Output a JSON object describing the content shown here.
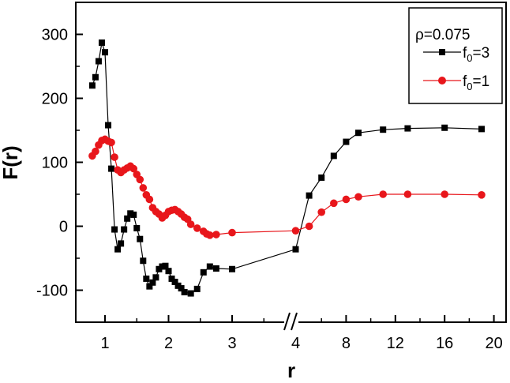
{
  "chart_data": {
    "type": "line",
    "xlabel": "r",
    "ylabel": "F(r)",
    "ylim": [
      -150,
      350
    ],
    "x_axis": "broken",
    "x_ticks_left": [
      "1",
      "2",
      "3",
      "4"
    ],
    "x_ticks_right": [
      "8",
      "12",
      "16",
      "20"
    ],
    "y_ticks": [
      "-100",
      "0",
      "100",
      "200",
      "300"
    ],
    "legend_title": "ρ=0.075",
    "legend_position": "top-right",
    "grid": false,
    "series": [
      {
        "name": "f0=3",
        "label_base": "f",
        "label_sub": "0",
        "label_tail": "=3",
        "color": "#000000",
        "marker": "square",
        "left": [
          [
            0.8,
            220
          ],
          [
            0.85,
            233
          ],
          [
            0.9,
            258
          ],
          [
            0.95,
            287
          ],
          [
            1.0,
            272
          ],
          [
            1.05,
            158
          ],
          [
            1.1,
            90
          ],
          [
            1.15,
            -5
          ],
          [
            1.2,
            -36
          ],
          [
            1.25,
            -27
          ],
          [
            1.3,
            -5
          ],
          [
            1.35,
            12
          ],
          [
            1.4,
            20
          ],
          [
            1.45,
            18
          ],
          [
            1.5,
            -3
          ],
          [
            1.55,
            -20
          ],
          [
            1.6,
            -54
          ],
          [
            1.65,
            -82
          ],
          [
            1.7,
            -94
          ],
          [
            1.75,
            -88
          ],
          [
            1.8,
            -80
          ],
          [
            1.85,
            -67
          ],
          [
            1.9,
            -63
          ],
          [
            1.95,
            -62
          ],
          [
            2.0,
            -70
          ],
          [
            2.05,
            -82
          ],
          [
            2.1,
            -87
          ],
          [
            2.15,
            -93
          ],
          [
            2.2,
            -97
          ],
          [
            2.25,
            -103
          ],
          [
            2.35,
            -105
          ],
          [
            2.45,
            -98
          ],
          [
            2.55,
            -72
          ],
          [
            2.65,
            -63
          ],
          [
            2.75,
            -66
          ],
          [
            3.0,
            -67
          ],
          [
            4.0,
            -36
          ]
        ],
        "right": [
          [
            5,
            48
          ],
          [
            6,
            76
          ],
          [
            7,
            110
          ],
          [
            8,
            132
          ],
          [
            9,
            146
          ],
          [
            11,
            151
          ],
          [
            13,
            153
          ],
          [
            16,
            154
          ],
          [
            19,
            152
          ]
        ]
      },
      {
        "name": "f0=1",
        "label_base": "f",
        "label_sub": "0",
        "label_tail": "=1",
        "color": "#e8161b",
        "marker": "circle",
        "left": [
          [
            0.8,
            110
          ],
          [
            0.85,
            117
          ],
          [
            0.9,
            127
          ],
          [
            0.95,
            134
          ],
          [
            1.0,
            136
          ],
          [
            1.05,
            133
          ],
          [
            1.1,
            131
          ],
          [
            1.15,
            108
          ],
          [
            1.2,
            88
          ],
          [
            1.25,
            84
          ],
          [
            1.3,
            88
          ],
          [
            1.35,
            91
          ],
          [
            1.4,
            94
          ],
          [
            1.45,
            90
          ],
          [
            1.5,
            81
          ],
          [
            1.55,
            73
          ],
          [
            1.6,
            60
          ],
          [
            1.65,
            49
          ],
          [
            1.7,
            42
          ],
          [
            1.75,
            29
          ],
          [
            1.8,
            23
          ],
          [
            1.85,
            19
          ],
          [
            1.9,
            13
          ],
          [
            1.95,
            17
          ],
          [
            2.0,
            23
          ],
          [
            2.05,
            25
          ],
          [
            2.1,
            26
          ],
          [
            2.15,
            23
          ],
          [
            2.2,
            19
          ],
          [
            2.25,
            14
          ],
          [
            2.3,
            11
          ],
          [
            2.35,
            3
          ],
          [
            2.45,
            -3
          ],
          [
            2.55,
            -8
          ],
          [
            2.6,
            -12
          ],
          [
            2.65,
            -14
          ],
          [
            2.75,
            -13
          ],
          [
            3.0,
            -10
          ],
          [
            4.0,
            -7
          ]
        ],
        "right": [
          [
            5,
            0
          ],
          [
            6,
            22
          ],
          [
            7,
            36
          ],
          [
            8,
            42
          ],
          [
            9,
            46
          ],
          [
            11,
            50
          ],
          [
            13,
            50
          ],
          [
            16,
            50
          ],
          [
            19,
            49
          ]
        ]
      }
    ]
  }
}
